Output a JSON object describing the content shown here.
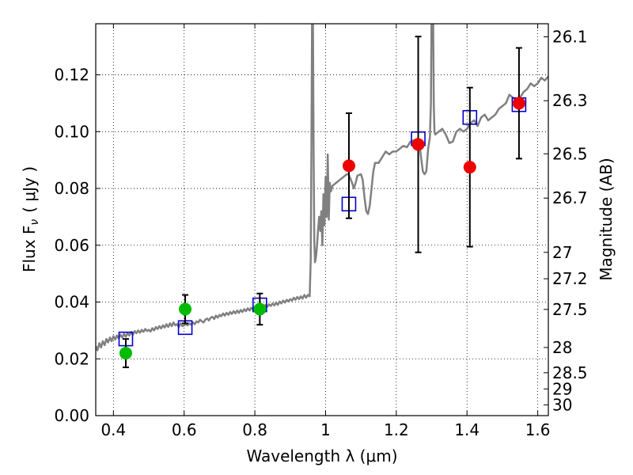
{
  "chart_data": {
    "type": "scatter",
    "title": "",
    "xlabel": "Wavelength  λ (μm)",
    "ylabel_left": "Flux  F",
    "ylabel_left_sub": "ν",
    "ylabel_left_unit": "( μJy )",
    "ylabel_right": "Magnitude (AB)",
    "xlim": [
      0.35,
      1.63
    ],
    "ylim": [
      0.0,
      0.138
    ],
    "grid": true,
    "x_ticks": [
      {
        "value": 0.4,
        "label": "0.4"
      },
      {
        "value": 0.6,
        "label": "0.6"
      },
      {
        "value": 0.8,
        "label": "0.8"
      },
      {
        "value": 1.0,
        "label": "1"
      },
      {
        "value": 1.2,
        "label": "1.2"
      },
      {
        "value": 1.4,
        "label": "1.4"
      },
      {
        "value": 1.6,
        "label": "1.6"
      }
    ],
    "y_ticks": [
      {
        "value": 0.0,
        "label": "0.00"
      },
      {
        "value": 0.02,
        "label": "0.02"
      },
      {
        "value": 0.04,
        "label": "0.04"
      },
      {
        "value": 0.06,
        "label": "0.06"
      },
      {
        "value": 0.08,
        "label": "0.08"
      },
      {
        "value": 0.1,
        "label": "0.10"
      },
      {
        "value": 0.12,
        "label": "0.12"
      }
    ],
    "right_ticks": [
      {
        "flux": 0.1334,
        "label": "26.1"
      },
      {
        "flux": 0.1109,
        "label": "26.3"
      },
      {
        "flux": 0.0922,
        "label": "26.5"
      },
      {
        "flux": 0.0766,
        "label": "26.7"
      },
      {
        "flux": 0.0575,
        "label": "27"
      },
      {
        "flux": 0.0482,
        "label": "27.2"
      },
      {
        "flux": 0.0374,
        "label": "27.5"
      },
      {
        "flux": 0.024,
        "label": "28"
      },
      {
        "flux": 0.0151,
        "label": "28.5"
      },
      {
        "flux": 0.0094,
        "label": "29"
      },
      {
        "flux": 0.0038,
        "label": "30"
      }
    ],
    "series": [
      {
        "kind": "model-spectrum",
        "color": "#808080",
        "points": [
          [
            0.35,
            0.0245
          ],
          [
            0.355,
            0.023
          ],
          [
            0.36,
            0.0255
          ],
          [
            0.365,
            0.024
          ],
          [
            0.37,
            0.0262
          ],
          [
            0.375,
            0.0248
          ],
          [
            0.38,
            0.027
          ],
          [
            0.385,
            0.0258
          ],
          [
            0.39,
            0.0275
          ],
          [
            0.395,
            0.0262
          ],
          [
            0.4,
            0.028
          ],
          [
            0.405,
            0.0268
          ],
          [
            0.41,
            0.0282
          ],
          [
            0.415,
            0.0272
          ],
          [
            0.42,
            0.0285
          ],
          [
            0.425,
            0.0275
          ],
          [
            0.43,
            0.0288
          ],
          [
            0.435,
            0.0278
          ],
          [
            0.44,
            0.029
          ],
          [
            0.445,
            0.0282
          ],
          [
            0.45,
            0.0295
          ],
          [
            0.455,
            0.0285
          ],
          [
            0.46,
            0.0298
          ],
          [
            0.465,
            0.029
          ],
          [
            0.47,
            0.03
          ],
          [
            0.475,
            0.0292
          ],
          [
            0.48,
            0.0302
          ],
          [
            0.485,
            0.0295
          ],
          [
            0.49,
            0.0305
          ],
          [
            0.495,
            0.0298
          ],
          [
            0.5,
            0.0302
          ],
          [
            0.505,
            0.0296
          ],
          [
            0.51,
            0.0308
          ],
          [
            0.515,
            0.03
          ],
          [
            0.52,
            0.0312
          ],
          [
            0.525,
            0.0305
          ],
          [
            0.53,
            0.0315
          ],
          [
            0.535,
            0.0307
          ],
          [
            0.54,
            0.0318
          ],
          [
            0.545,
            0.031
          ],
          [
            0.55,
            0.0322
          ],
          [
            0.555,
            0.0312
          ],
          [
            0.56,
            0.0325
          ],
          [
            0.565,
            0.0315
          ],
          [
            0.57,
            0.0328
          ],
          [
            0.575,
            0.0318
          ],
          [
            0.58,
            0.0322
          ],
          [
            0.585,
            0.0312
          ],
          [
            0.59,
            0.0326
          ],
          [
            0.595,
            0.0315
          ],
          [
            0.6,
            0.0318
          ],
          [
            0.605,
            0.0322
          ],
          [
            0.61,
            0.0318
          ],
          [
            0.615,
            0.0325
          ],
          [
            0.62,
            0.032
          ],
          [
            0.625,
            0.0328
          ],
          [
            0.63,
            0.0322
          ],
          [
            0.635,
            0.0332
          ],
          [
            0.64,
            0.0328
          ],
          [
            0.645,
            0.0338
          ],
          [
            0.65,
            0.0332
          ],
          [
            0.655,
            0.0328
          ],
          [
            0.66,
            0.0338
          ],
          [
            0.665,
            0.0342
          ],
          [
            0.67,
            0.0335
          ],
          [
            0.675,
            0.0345
          ],
          [
            0.68,
            0.0348
          ],
          [
            0.685,
            0.034
          ],
          [
            0.69,
            0.0352
          ],
          [
            0.695,
            0.0345
          ],
          [
            0.7,
            0.0355
          ],
          [
            0.705,
            0.035
          ],
          [
            0.71,
            0.036
          ],
          [
            0.715,
            0.0352
          ],
          [
            0.72,
            0.0362
          ],
          [
            0.725,
            0.0355
          ],
          [
            0.73,
            0.0365
          ],
          [
            0.735,
            0.0358
          ],
          [
            0.74,
            0.0368
          ],
          [
            0.745,
            0.036
          ],
          [
            0.75,
            0.037
          ],
          [
            0.755,
            0.0362
          ],
          [
            0.76,
            0.0372
          ],
          [
            0.765,
            0.0365
          ],
          [
            0.77,
            0.0375
          ],
          [
            0.775,
            0.0368
          ],
          [
            0.78,
            0.0378
          ],
          [
            0.785,
            0.037
          ],
          [
            0.79,
            0.038
          ],
          [
            0.795,
            0.0372
          ],
          [
            0.8,
            0.0382
          ],
          [
            0.805,
            0.0375
          ],
          [
            0.81,
            0.0385
          ],
          [
            0.815,
            0.0378
          ],
          [
            0.82,
            0.0388
          ],
          [
            0.825,
            0.038
          ],
          [
            0.83,
            0.039
          ],
          [
            0.835,
            0.0383
          ],
          [
            0.84,
            0.0392
          ],
          [
            0.845,
            0.0386
          ],
          [
            0.85,
            0.0395
          ],
          [
            0.855,
            0.0388
          ],
          [
            0.86,
            0.0398
          ],
          [
            0.865,
            0.039
          ],
          [
            0.87,
            0.0402
          ],
          [
            0.875,
            0.0395
          ],
          [
            0.88,
            0.0405
          ],
          [
            0.885,
            0.0398
          ],
          [
            0.89,
            0.0408
          ],
          [
            0.895,
            0.0402
          ],
          [
            0.9,
            0.041
          ],
          [
            0.905,
            0.0405
          ],
          [
            0.91,
            0.0415
          ],
          [
            0.915,
            0.0408
          ],
          [
            0.92,
            0.0418
          ],
          [
            0.925,
            0.041
          ],
          [
            0.93,
            0.042
          ],
          [
            0.935,
            0.0412
          ],
          [
            0.94,
            0.0425
          ],
          [
            0.945,
            0.0415
          ],
          [
            0.95,
            0.0425
          ],
          [
            0.955,
            0.042
          ],
          [
            0.958,
            0.055
          ],
          [
            0.96,
            0.095
          ],
          [
            0.962,
            0.145
          ],
          [
            0.964,
            0.145
          ],
          [
            0.966,
            0.095
          ],
          [
            0.968,
            0.062
          ],
          [
            0.97,
            0.054
          ],
          [
            0.973,
            0.056
          ],
          [
            0.976,
            0.06
          ],
          [
            0.979,
            0.066
          ],
          [
            0.982,
            0.07
          ],
          [
            0.985,
            0.065
          ],
          [
            0.988,
            0.072
          ],
          [
            0.991,
            0.06
          ],
          [
            0.994,
            0.078
          ],
          [
            0.997,
            0.067
          ],
          [
            1.0,
            0.084
          ],
          [
            1.003,
            0.07
          ],
          [
            1.006,
            0.092
          ],
          [
            1.009,
            0.069
          ],
          [
            1.012,
            0.082
          ],
          [
            1.015,
            0.079
          ],
          [
            1.02,
            0.081
          ],
          [
            1.03,
            0.082
          ],
          [
            1.04,
            0.083
          ],
          [
            1.05,
            0.084
          ],
          [
            1.06,
            0.085
          ],
          [
            1.065,
            0.085
          ],
          [
            1.07,
            0.0835
          ],
          [
            1.075,
            0.082
          ],
          [
            1.08,
            0.08
          ],
          [
            1.085,
            0.082
          ],
          [
            1.09,
            0.0845
          ],
          [
            1.1,
            0.085
          ],
          [
            1.105,
            0.083
          ],
          [
            1.11,
            0.077
          ],
          [
            1.115,
            0.072
          ],
          [
            1.12,
            0.071
          ],
          [
            1.125,
            0.074
          ],
          [
            1.13,
            0.08
          ],
          [
            1.135,
            0.086
          ],
          [
            1.14,
            0.089
          ],
          [
            1.15,
            0.089
          ],
          [
            1.16,
            0.091
          ],
          [
            1.17,
            0.093
          ],
          [
            1.18,
            0.092
          ],
          [
            1.19,
            0.093
          ],
          [
            1.2,
            0.093
          ],
          [
            1.21,
            0.094
          ],
          [
            1.22,
            0.095
          ],
          [
            1.23,
            0.0945
          ],
          [
            1.24,
            0.0965
          ],
          [
            1.25,
            0.097
          ],
          [
            1.26,
            0.0975
          ],
          [
            1.265,
            0.096
          ],
          [
            1.27,
            0.091
          ],
          [
            1.275,
            0.086
          ],
          [
            1.28,
            0.085
          ],
          [
            1.285,
            0.086
          ],
          [
            1.29,
            0.094
          ],
          [
            1.295,
            0.098
          ],
          [
            1.298,
            0.11
          ],
          [
            1.3,
            0.145
          ],
          [
            1.304,
            0.145
          ],
          [
            1.306,
            0.11
          ],
          [
            1.308,
            0.1
          ],
          [
            1.31,
            0.099
          ],
          [
            1.32,
            0.1
          ],
          [
            1.33,
            0.101
          ],
          [
            1.34,
            0.099
          ],
          [
            1.35,
            0.096
          ],
          [
            1.36,
            0.0965
          ],
          [
            1.37,
            0.1
          ],
          [
            1.38,
            0.101
          ],
          [
            1.39,
            0.1
          ],
          [
            1.4,
            0.101
          ],
          [
            1.41,
            0.103
          ],
          [
            1.42,
            0.104
          ],
          [
            1.43,
            0.102
          ],
          [
            1.44,
            0.105
          ],
          [
            1.45,
            0.106
          ],
          [
            1.46,
            0.104
          ],
          [
            1.47,
            0.105
          ],
          [
            1.48,
            0.106
          ],
          [
            1.49,
            0.108
          ],
          [
            1.5,
            0.109
          ],
          [
            1.51,
            0.11
          ],
          [
            1.52,
            0.113
          ],
          [
            1.53,
            0.112
          ],
          [
            1.54,
            0.111
          ],
          [
            1.55,
            0.112
          ],
          [
            1.56,
            0.114
          ],
          [
            1.57,
            0.115
          ],
          [
            1.58,
            0.117
          ],
          [
            1.59,
            0.116
          ],
          [
            1.6,
            0.117
          ],
          [
            1.61,
            0.119
          ],
          [
            1.62,
            0.118
          ],
          [
            1.63,
            0.1195
          ]
        ]
      },
      {
        "kind": "model-photometry",
        "marker": "square",
        "color": "#0000cc",
        "points": [
          {
            "x": 0.435,
            "y": 0.027
          },
          {
            "x": 0.603,
            "y": 0.031
          },
          {
            "x": 0.814,
            "y": 0.039
          },
          {
            "x": 1.066,
            "y": 0.0745
          },
          {
            "x": 1.262,
            "y": 0.0975
          },
          {
            "x": 1.408,
            "y": 0.105
          },
          {
            "x": 1.547,
            "y": 0.1095
          }
        ]
      },
      {
        "kind": "observed-detections",
        "marker": "circle",
        "color": "#00bb00",
        "points": [
          {
            "x": 0.435,
            "y": 0.022,
            "err": 0.005
          },
          {
            "x": 0.603,
            "y": 0.0375,
            "err": 0.005
          },
          {
            "x": 0.814,
            "y": 0.0375,
            "err": 0.0055
          }
        ]
      },
      {
        "kind": "observed-faint",
        "marker": "circle",
        "color": "#ee0000",
        "points": [
          {
            "x": 1.066,
            "y": 0.088,
            "err": 0.0185
          },
          {
            "x": 1.262,
            "y": 0.0955,
            "err": 0.038
          },
          {
            "x": 1.408,
            "y": 0.0875,
            "err": 0.028
          },
          {
            "x": 1.547,
            "y": 0.11,
            "err": 0.0195
          }
        ]
      }
    ]
  }
}
